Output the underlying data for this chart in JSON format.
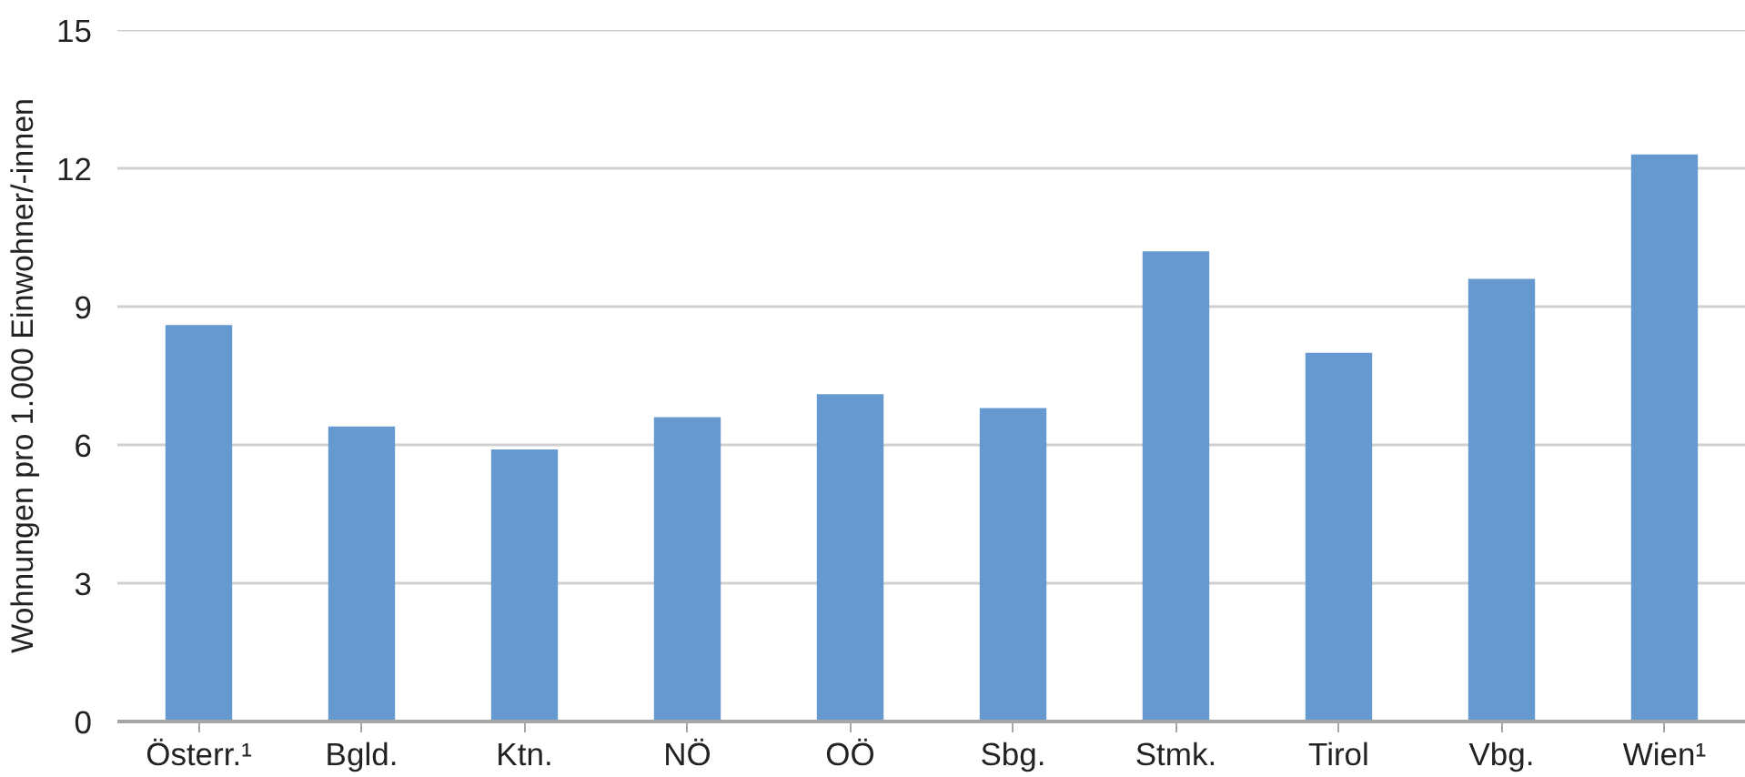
{
  "chart_data": {
    "type": "bar",
    "ylabel": "Wohnungen pro 1.000 Einwohner/-innen",
    "categories": [
      "Österr.¹",
      "Bgld.",
      "Ktn.",
      "NÖ",
      "OÖ",
      "Sbg.",
      "Stmk.",
      "Tirol",
      "Vbg.",
      "Wien¹"
    ],
    "values": [
      8.6,
      6.4,
      5.9,
      6.6,
      7.1,
      6.8,
      10.2,
      8.0,
      9.6,
      12.3
    ],
    "color": "#6699d0",
    "ylim": [
      0,
      15
    ],
    "yticks": [
      0,
      3,
      6,
      9,
      12,
      15
    ],
    "grid": "y"
  }
}
